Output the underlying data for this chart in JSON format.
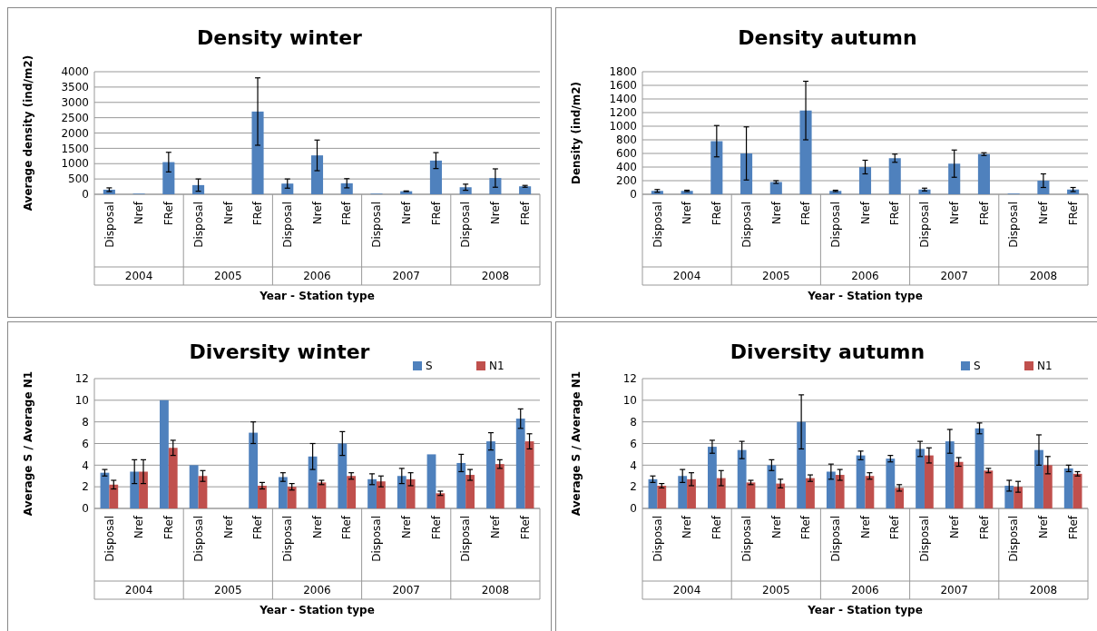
{
  "chart_data": [
    {
      "type": "bar",
      "title": "Density winter",
      "xlabel": "Year - Station type",
      "ylabel": "Average density (ind/m2)",
      "categories": [
        "Disposal",
        "Nref",
        "FRef",
        "Disposal",
        "Nref",
        "FRef",
        "Disposal",
        "Nref",
        "FRef",
        "Disposal",
        "Nref",
        "FRef",
        "Disposal",
        "Nref",
        "FRef"
      ],
      "series": [
        {
          "color": "#4f81bd",
          "values": [
            150,
            20,
            1050,
            300,
            null,
            2700,
            350,
            1270,
            360,
            20,
            100,
            1100,
            230,
            530,
            260
          ],
          "errors": [
            60,
            null,
            320,
            200,
            null,
            1100,
            150,
            500,
            150,
            null,
            10,
            260,
            100,
            300,
            30
          ]
        }
      ],
      "ylim": [
        0,
        4000
      ],
      "yticks": [
        0,
        500,
        1000,
        1500,
        2000,
        2500,
        3000,
        3500,
        4000
      ],
      "grid": "y",
      "legend": false,
      "annotations": [
        "2004",
        "2005",
        "2006",
        "2007",
        "2008"
      ]
    },
    {
      "type": "bar",
      "title": "Density autumn",
      "xlabel": "Year - Station type",
      "ylabel": "Density (ind/m2)",
      "categories": [
        "Disposal",
        "Nref",
        "FRef",
        "Disposal",
        "Nref",
        "FRef",
        "Disposal",
        "Nref",
        "FRef",
        "Disposal",
        "Nref",
        "FRef",
        "Disposal",
        "Nref",
        "FRef"
      ],
      "series": [
        {
          "color": "#4f81bd",
          "values": [
            50,
            50,
            780,
            600,
            180,
            1230,
            50,
            400,
            530,
            70,
            450,
            590,
            10,
            200,
            70
          ],
          "errors": [
            20,
            10,
            230,
            390,
            20,
            430,
            10,
            100,
            60,
            20,
            200,
            20,
            null,
            100,
            30
          ]
        }
      ],
      "ylim": [
        0,
        1800
      ],
      "yticks": [
        0,
        200,
        400,
        600,
        800,
        1000,
        1200,
        1400,
        1600,
        1800
      ],
      "grid": "y",
      "legend": false,
      "annotations": [
        "2004",
        "2005",
        "2006",
        "2007",
        "2008"
      ]
    },
    {
      "type": "bar",
      "title": "Diversity winter",
      "xlabel": "Year - Station type",
      "ylabel": "Average S / Average N1",
      "categories": [
        "Disposal",
        "Nref",
        "FRef",
        "Disposal",
        "Nref",
        "FRef",
        "Disposal",
        "Nref",
        "FRef",
        "Disposal",
        "Nref",
        "FRef",
        "Disposal",
        "Nref",
        "FRef"
      ],
      "series": [
        {
          "name": "S",
          "color": "#4f81bd",
          "values": [
            3.3,
            3.4,
            10,
            4,
            null,
            7,
            2.9,
            4.8,
            6,
            2.7,
            3,
            5,
            4.2,
            6.2,
            8.3
          ],
          "errors": [
            0.3,
            1.1,
            null,
            null,
            null,
            1,
            0.4,
            1.2,
            1.1,
            0.5,
            0.7,
            null,
            0.8,
            0.8,
            0.9
          ]
        },
        {
          "name": "N1",
          "color": "#c0504d",
          "values": [
            2.2,
            3.4,
            5.6,
            3,
            null,
            2.1,
            2,
            2.4,
            3,
            2.5,
            2.7,
            1.4,
            3.1,
            4.1,
            6.2
          ],
          "errors": [
            0.4,
            1.1,
            0.7,
            0.5,
            null,
            0.3,
            0.3,
            0.2,
            0.3,
            0.5,
            0.6,
            0.2,
            0.5,
            0.4,
            0.7
          ]
        }
      ],
      "ylim": [
        0,
        12
      ],
      "yticks": [
        0,
        2,
        4,
        6,
        8,
        10,
        12
      ],
      "grid": "y",
      "legend": "top right",
      "annotations": [
        "2004",
        "2005",
        "2006",
        "2007",
        "2008"
      ]
    },
    {
      "type": "bar",
      "title": "Diversity autumn",
      "xlabel": "Year - Station type",
      "ylabel": "Average S / Average N1",
      "categories": [
        "Disposal",
        "Nref",
        "FRef",
        "Disposal",
        "Nref",
        "FRef",
        "Disposal",
        "Nref",
        "FRef",
        "Disposal",
        "Nref",
        "FRef",
        "Disposal",
        "Nref",
        "FRef"
      ],
      "series": [
        {
          "name": "S",
          "color": "#4f81bd",
          "values": [
            2.7,
            3,
            5.7,
            5.4,
            4,
            8,
            3.4,
            4.9,
            4.6,
            5.5,
            6.2,
            7.4,
            2.1,
            5.4,
            3.7
          ],
          "errors": [
            0.3,
            0.6,
            0.6,
            0.8,
            0.5,
            2.5,
            0.7,
            0.4,
            0.3,
            0.7,
            1.1,
            0.5,
            0.5,
            1.4,
            0.3
          ]
        },
        {
          "name": "N1",
          "color": "#c0504d",
          "values": [
            2.1,
            2.7,
            2.8,
            2.4,
            2.3,
            2.8,
            3.1,
            3,
            1.9,
            4.9,
            4.3,
            3.5,
            2,
            4,
            3.2
          ],
          "errors": [
            0.2,
            0.6,
            0.7,
            0.2,
            0.4,
            0.3,
            0.5,
            0.3,
            0.3,
            0.7,
            0.4,
            0.2,
            0.5,
            0.8,
            0.2
          ]
        }
      ],
      "ylim": [
        0,
        12
      ],
      "yticks": [
        0,
        2,
        4,
        6,
        8,
        10,
        12
      ],
      "grid": "y",
      "legend": "top right",
      "annotations": [
        "2004",
        "2005",
        "2006",
        "2007",
        "2008"
      ]
    }
  ]
}
